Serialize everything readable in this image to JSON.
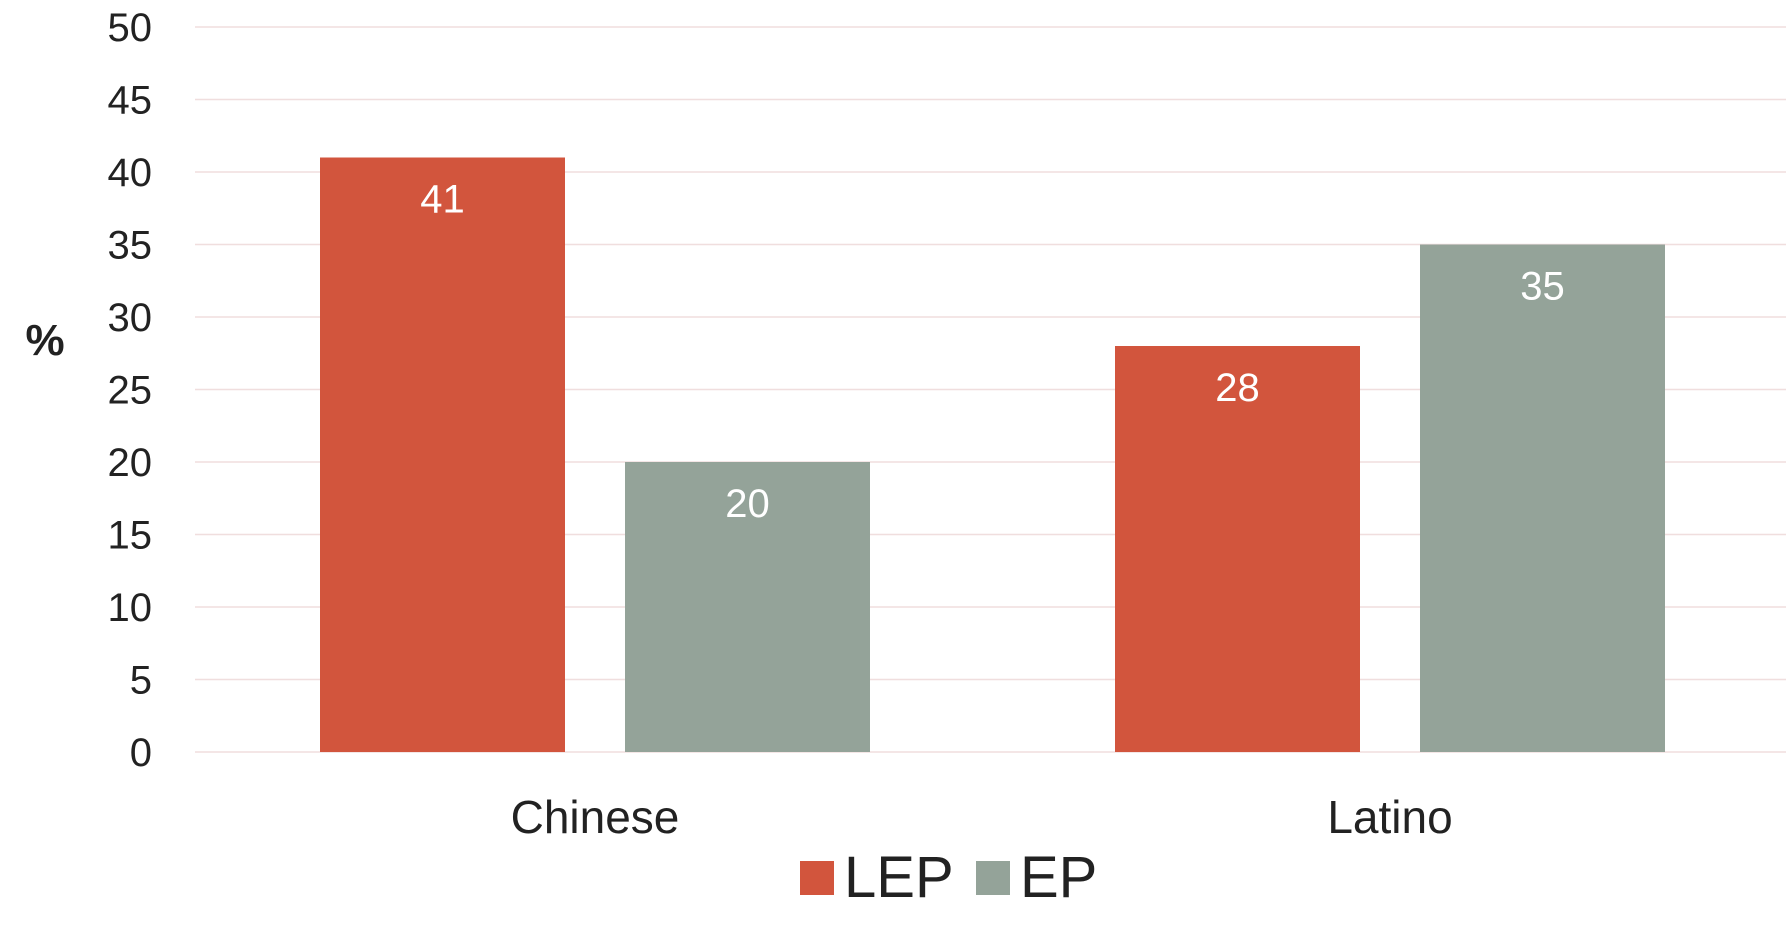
{
  "chart_data": {
    "type": "bar",
    "title": "",
    "xlabel": "",
    "ylabel": "%",
    "categories": [
      "Chinese",
      "Latino"
    ],
    "series": [
      {
        "name": "LEP",
        "values": [
          41,
          28
        ],
        "color": "#d2553d"
      },
      {
        "name": "EP",
        "values": [
          20,
          35
        ],
        "color": "#94a399"
      }
    ],
    "ylim": [
      0,
      50
    ],
    "yticks": [
      0,
      5,
      10,
      15,
      20,
      25,
      30,
      35,
      40,
      45,
      50
    ],
    "grid": true,
    "legend_position": "bottom",
    "data_labels": true
  }
}
